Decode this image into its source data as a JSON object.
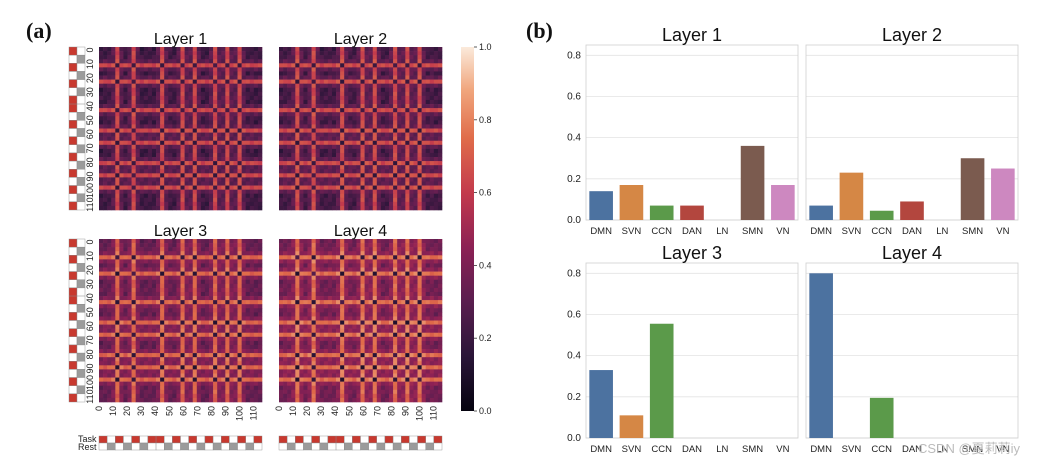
{
  "panel_a": {
    "label": "(a)",
    "maps": [
      {
        "title": "Layer 1",
        "level": 0.22
      },
      {
        "title": "Layer 2",
        "level": 0.25
      },
      {
        "title": "Layer 3",
        "level": 0.45
      },
      {
        "title": "Layer 4",
        "level": 0.52
      }
    ],
    "matrix_ticks": [
      "0",
      "10",
      "20",
      "30",
      "40",
      "50",
      "60",
      "70",
      "80",
      "90",
      "100",
      "110"
    ],
    "colorbar": {
      "ticks": [
        "1.0",
        "0.8",
        "0.6",
        "0.4",
        "0.2",
        "0.0"
      ],
      "range": [
        0,
        1
      ]
    },
    "legend": {
      "task": "Task",
      "rest": "Rest"
    },
    "colors": {
      "task": "#c8392f",
      "rest": "#9b9b9b"
    }
  },
  "panel_b": {
    "label": "(b)",
    "categories": [
      "DMN",
      "SVN",
      "CCN",
      "DAN",
      "LN",
      "SMN",
      "VN"
    ],
    "colors": [
      "#4c72a0",
      "#d58745",
      "#5b9a4a",
      "#b3463e",
      "#8172b2",
      "#7b5b4f",
      "#cd88c0"
    ],
    "ylim": [
      0,
      0.85
    ],
    "yticks": [
      "0.0",
      "0.2",
      "0.4",
      "0.6",
      "0.8"
    ]
  },
  "chart_data": [
    {
      "type": "bar",
      "title": "Layer 1",
      "categories": [
        "DMN",
        "SVN",
        "CCN",
        "DAN",
        "LN",
        "SMN",
        "VN"
      ],
      "values": [
        0.14,
        0.17,
        0.07,
        0.07,
        0.0,
        0.36,
        0.17
      ],
      "ylim": [
        0,
        0.85
      ]
    },
    {
      "type": "bar",
      "title": "Layer 2",
      "categories": [
        "DMN",
        "SVN",
        "CCN",
        "DAN",
        "LN",
        "SMN",
        "VN"
      ],
      "values": [
        0.07,
        0.23,
        0.045,
        0.09,
        0.0,
        0.3,
        0.25
      ],
      "ylim": [
        0,
        0.85
      ]
    },
    {
      "type": "bar",
      "title": "Layer 3",
      "categories": [
        "DMN",
        "SVN",
        "CCN",
        "DAN",
        "LN",
        "SMN",
        "VN"
      ],
      "values": [
        0.33,
        0.11,
        0.555,
        0.0,
        0.0,
        0.0,
        0.0
      ],
      "ylim": [
        0,
        0.85
      ]
    },
    {
      "type": "bar",
      "title": "Layer 4",
      "categories": [
        "DMN",
        "SVN",
        "CCN",
        "DAN",
        "LN",
        "SMN",
        "VN"
      ],
      "values": [
        0.8,
        0.0,
        0.195,
        0.0,
        0.0,
        0.0,
        0.0
      ],
      "ylim": [
        0,
        0.85
      ]
    },
    {
      "type": "heatmap",
      "title": "Layer 1",
      "x_ticks": [
        "0",
        "10",
        "20",
        "30",
        "40",
        "50",
        "60",
        "70",
        "80",
        "90",
        "100",
        "110"
      ],
      "y_ticks": [
        "0",
        "10",
        "20",
        "30",
        "40",
        "50",
        "60",
        "70",
        "80",
        "90",
        "100",
        "110"
      ],
      "zlim": [
        0,
        1
      ]
    }
  ],
  "watermark": "CSDN @夏莉莉iy"
}
